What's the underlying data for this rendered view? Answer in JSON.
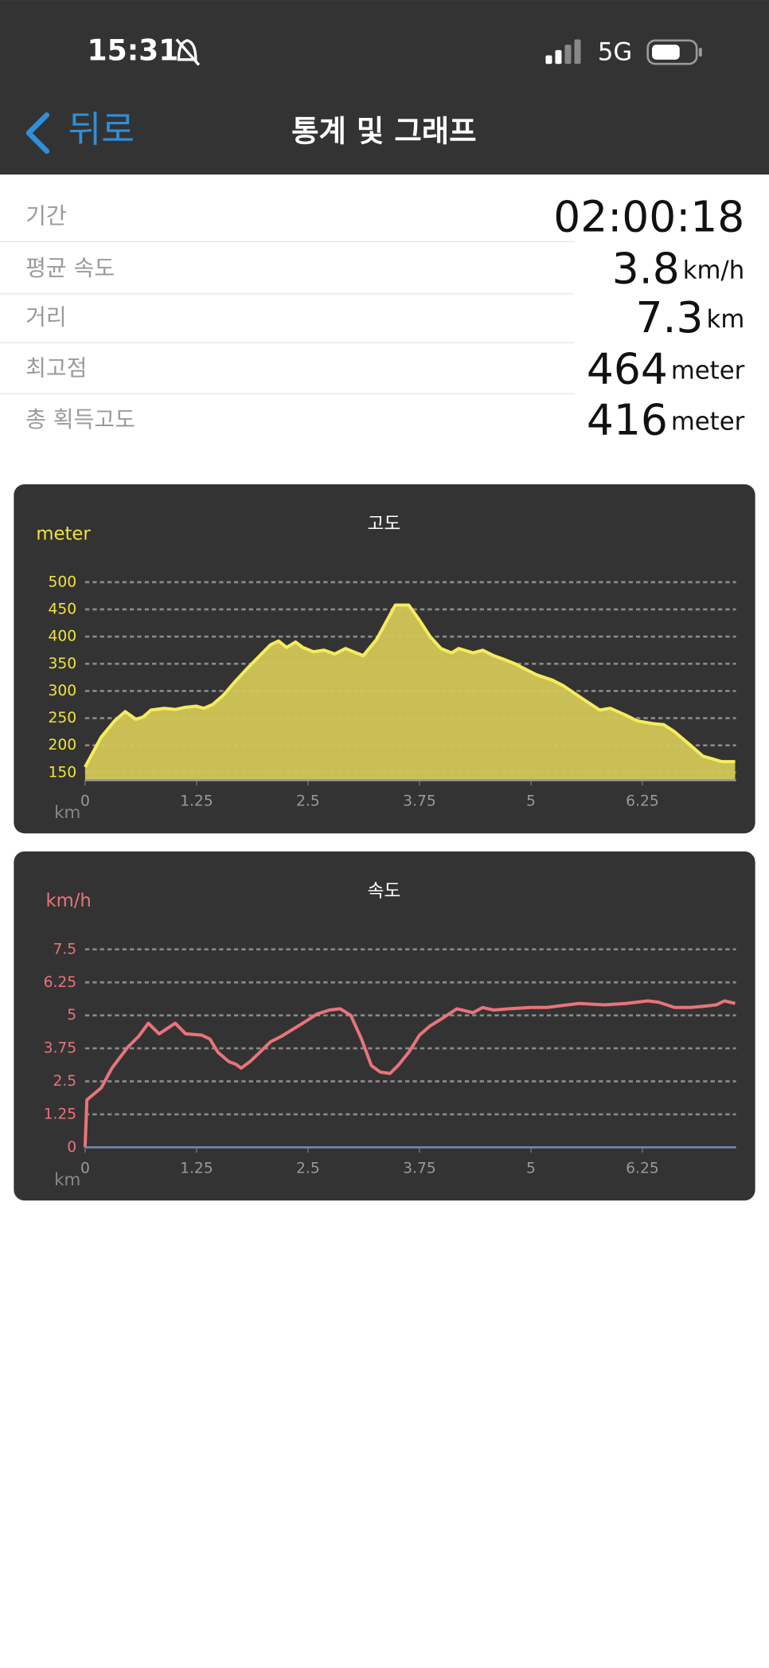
{
  "status_bar": {
    "time": "15:31",
    "network": "5G"
  },
  "nav": {
    "back": "뒤로",
    "title": "통계 및 그래프"
  },
  "stats": [
    {
      "label": "기간",
      "value": "02:00:18"
    },
    {
      "label": "평균 속도",
      "value": 3.8,
      "unit": "km/h"
    },
    {
      "label": "거리",
      "value": 7.3,
      "unit": "km"
    },
    {
      "label": "최고점",
      "value": 464,
      "unit": "meter"
    },
    {
      "label": "총 획득고도",
      "value": 416,
      "unit": "meter"
    }
  ],
  "chart_data": [
    {
      "type": "area",
      "title": "고도",
      "y_label": "meter",
      "x_label": "km",
      "color": "#f5ec5c",
      "fill_color": "#d2c757",
      "tick_color": "#f2e33c",
      "x": [
        0,
        0.18,
        0.33,
        0.45,
        0.57,
        0.65,
        0.74,
        0.89,
        1.01,
        1.13,
        1.25,
        1.33,
        1.43,
        1.55,
        1.67,
        1.81,
        1.96,
        2.08,
        2.17,
        2.26,
        2.36,
        2.44,
        2.56,
        2.68,
        2.8,
        2.92,
        3.04,
        3.12,
        3.27,
        3.48,
        3.63,
        3.75,
        3.87,
        3.99,
        4.11,
        4.19,
        4.35,
        4.46,
        4.58,
        4.7,
        4.82,
        4.94,
        5.06,
        5.24,
        5.36,
        5.54,
        5.77,
        5.89,
        6.07,
        6.19,
        6.37,
        6.49,
        6.61,
        6.79,
        6.93,
        7.14,
        7.29
      ],
      "values": [
        160,
        215,
        245,
        262,
        248,
        252,
        265,
        268,
        266,
        270,
        272,
        268,
        275,
        292,
        315,
        340,
        365,
        385,
        392,
        380,
        390,
        380,
        372,
        375,
        368,
        378,
        370,
        365,
        395,
        458,
        458,
        430,
        400,
        378,
        370,
        378,
        370,
        375,
        365,
        358,
        350,
        340,
        330,
        320,
        310,
        290,
        265,
        268,
        255,
        245,
        240,
        238,
        225,
        200,
        180,
        170,
        170
      ],
      "xlim": [
        0,
        7.3
      ],
      "xticks": [
        0,
        1.25,
        2.5,
        3.75,
        5,
        6.25
      ],
      "ylim": [
        136,
        500
      ],
      "yticks": [
        150,
        200,
        250,
        300,
        350,
        400,
        450,
        500
      ],
      "grid": true
    },
    {
      "type": "line",
      "title": "속도",
      "y_label": "km/h",
      "x_label": "km",
      "color": "#e8747a",
      "tick_color": "#e8747a",
      "x": [
        0,
        0.02,
        0.18,
        0.3,
        0.48,
        0.6,
        0.71,
        0.83,
        1.01,
        1.13,
        1.31,
        1.4,
        1.49,
        1.61,
        1.69,
        1.75,
        1.85,
        1.96,
        2.08,
        2.2,
        2.32,
        2.44,
        2.6,
        2.74,
        2.86,
        2.98,
        3.1,
        3.21,
        3.31,
        3.42,
        3.51,
        3.63,
        3.75,
        3.87,
        3.99,
        4.17,
        4.35,
        4.46,
        4.58,
        4.76,
        5.0,
        5.18,
        5.3,
        5.54,
        5.83,
        6.07,
        6.31,
        6.43,
        6.61,
        6.79,
        6.96,
        7.08,
        7.17,
        7.29
      ],
      "values": [
        0,
        1.8,
        2.25,
        3.0,
        3.8,
        4.2,
        4.7,
        4.3,
        4.7,
        4.3,
        4.25,
        4.1,
        3.6,
        3.25,
        3.15,
        3.0,
        3.25,
        3.6,
        4.0,
        4.2,
        4.45,
        4.7,
        5.05,
        5.2,
        5.25,
        5.0,
        4.1,
        3.1,
        2.85,
        2.8,
        3.1,
        3.6,
        4.25,
        4.6,
        4.85,
        5.25,
        5.1,
        5.3,
        5.2,
        5.25,
        5.3,
        5.3,
        5.35,
        5.45,
        5.4,
        5.45,
        5.55,
        5.5,
        5.3,
        5.3,
        5.35,
        5.4,
        5.55,
        5.45
      ],
      "xlim": [
        0,
        7.3
      ],
      "xticks": [
        0,
        1.25,
        2.5,
        3.75,
        5,
        6.25
      ],
      "ylim": [
        0,
        7.5
      ],
      "yticks": [
        0,
        1.25,
        2.5,
        3.75,
        5,
        6.25,
        7.5
      ],
      "grid": true
    }
  ]
}
